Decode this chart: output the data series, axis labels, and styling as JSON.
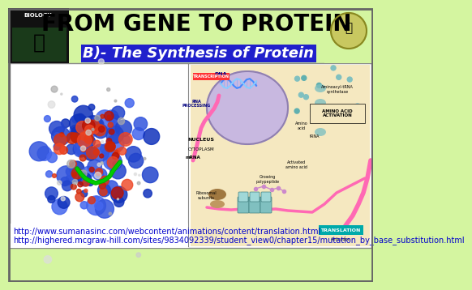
{
  "bg_color": "#d4f5a0",
  "title_text": "FROM GENE TO PROTEIN",
  "title_color": "#000000",
  "title_fontsize": 20,
  "subtitle_text": "B)- The Synthesis of Protein",
  "subtitle_bg": "#2020cc",
  "subtitle_fg": "#ffffff",
  "subtitle_fontsize": 13,
  "main_bg": "#ffffff",
  "url1": "http://www.sumanasinc.com/webcontent/animations/content/translation.html",
  "url2": "http://highered.mcgraw-hill.com/sites/9834092339/student_view0/chapter15/mutation_by_base_substitution.html",
  "url_color": "#0000cc",
  "url_fontsize": 7,
  "border_color": "#888888",
  "logo_left_bg": "#111111",
  "logo_right_bg": "#d4f5a0"
}
